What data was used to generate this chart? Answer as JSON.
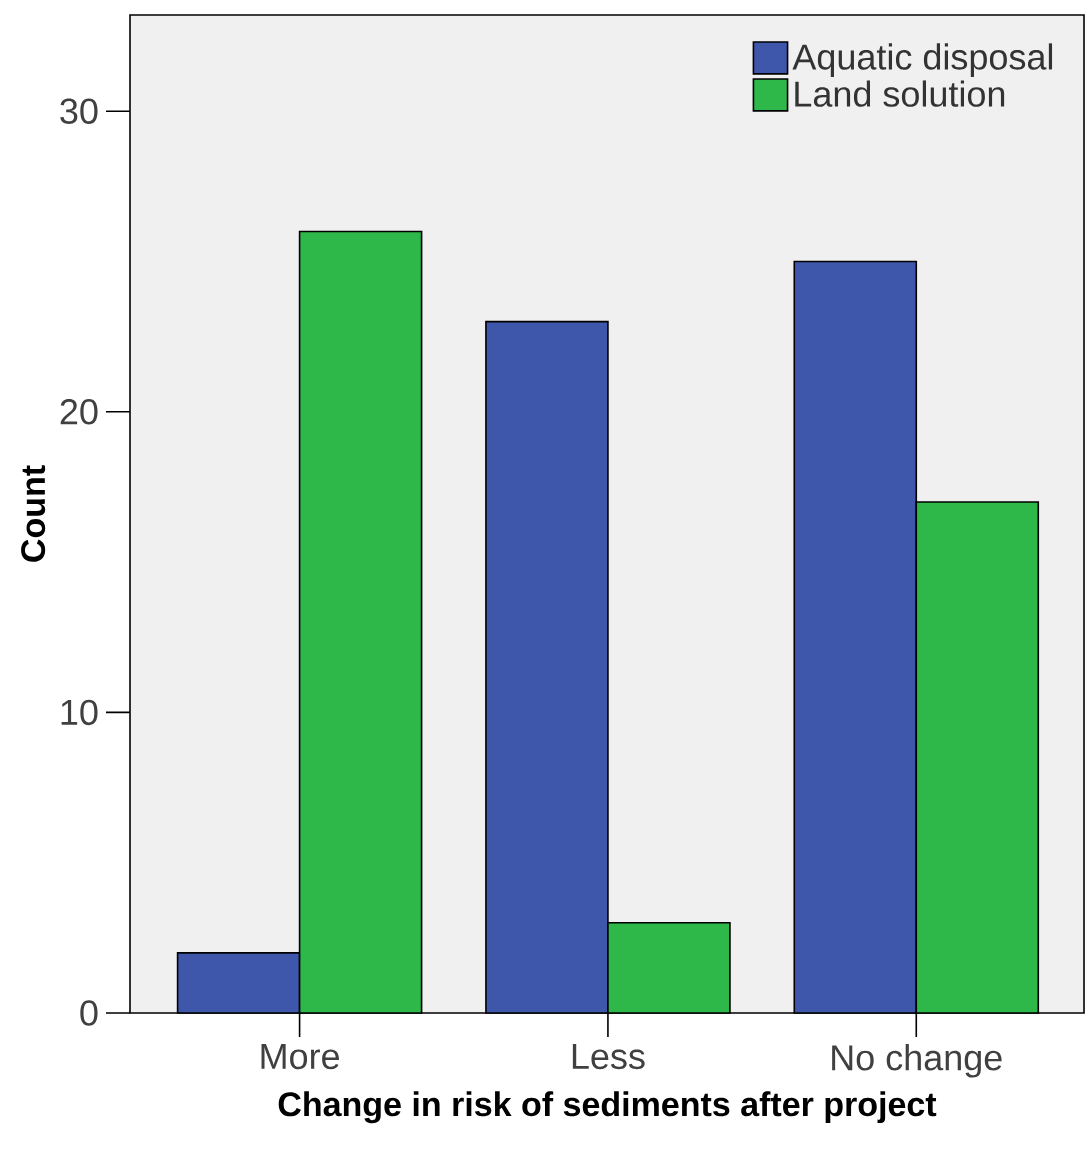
{
  "chart_data": {
    "type": "bar",
    "xlabel": "Change in risk of sediments after project",
    "ylabel": "Count",
    "categories": [
      "More",
      "Less",
      "No change"
    ],
    "series": [
      {
        "name": "Aquatic disposal",
        "color": "#3f57ab",
        "values": [
          2,
          23,
          25
        ]
      },
      {
        "name": "Land solution",
        "color": "#2fb84a",
        "values": [
          26,
          3,
          17
        ]
      }
    ],
    "ylim": [
      0,
      33.2
    ],
    "yticks": [
      0,
      10,
      20,
      30
    ],
    "legend": "top right",
    "grid": false
  }
}
